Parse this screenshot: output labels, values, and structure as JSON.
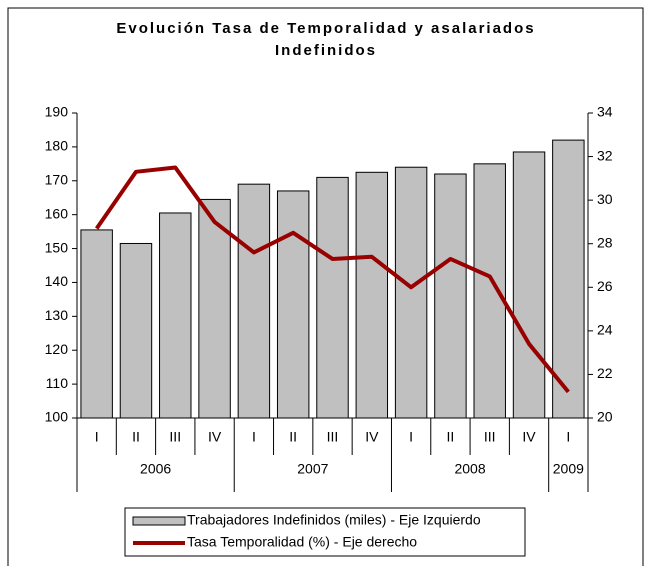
{
  "chart_data": {
    "type": "bar_line",
    "title": "Evolución Tasa de Temporalidad  y asalariados Indefinidos",
    "categories": [
      "I",
      "II",
      "III",
      "IV",
      "I",
      "II",
      "III",
      "IV",
      "I",
      "II",
      "III",
      "IV",
      "I"
    ],
    "year_labels": [
      "2006",
      null,
      null,
      null,
      "2007",
      null,
      null,
      null,
      "2008",
      null,
      null,
      null,
      "2009"
    ],
    "series": [
      {
        "name": "Trabajadores Indefinidos (miles) - Eje Izquierdo",
        "color": "#c0c0c0",
        "kind": "bar",
        "axis": "y",
        "values": [
          155.5,
          151.5,
          160.5,
          164.5,
          169,
          167,
          171,
          172.5,
          174,
          172,
          175,
          178.5,
          182
        ]
      },
      {
        "name": "Tasa Temporalidad (%) - Eje derecho",
        "color": "#990000",
        "kind": "line",
        "axis": "y2",
        "values": [
          28.7,
          31.3,
          31.5,
          29.0,
          27.6,
          28.5,
          27.3,
          27.4,
          26.0,
          27.3,
          26.5,
          23.4,
          21.2
        ]
      }
    ],
    "ylim": [
      100,
      190
    ],
    "yticks": [
      100,
      110,
      120,
      130,
      140,
      150,
      160,
      170,
      180,
      190
    ],
    "y2lim": [
      20,
      34
    ],
    "y2ticks": [
      20,
      22,
      24,
      26,
      28,
      30,
      32,
      34
    ],
    "legend": "bottom"
  }
}
